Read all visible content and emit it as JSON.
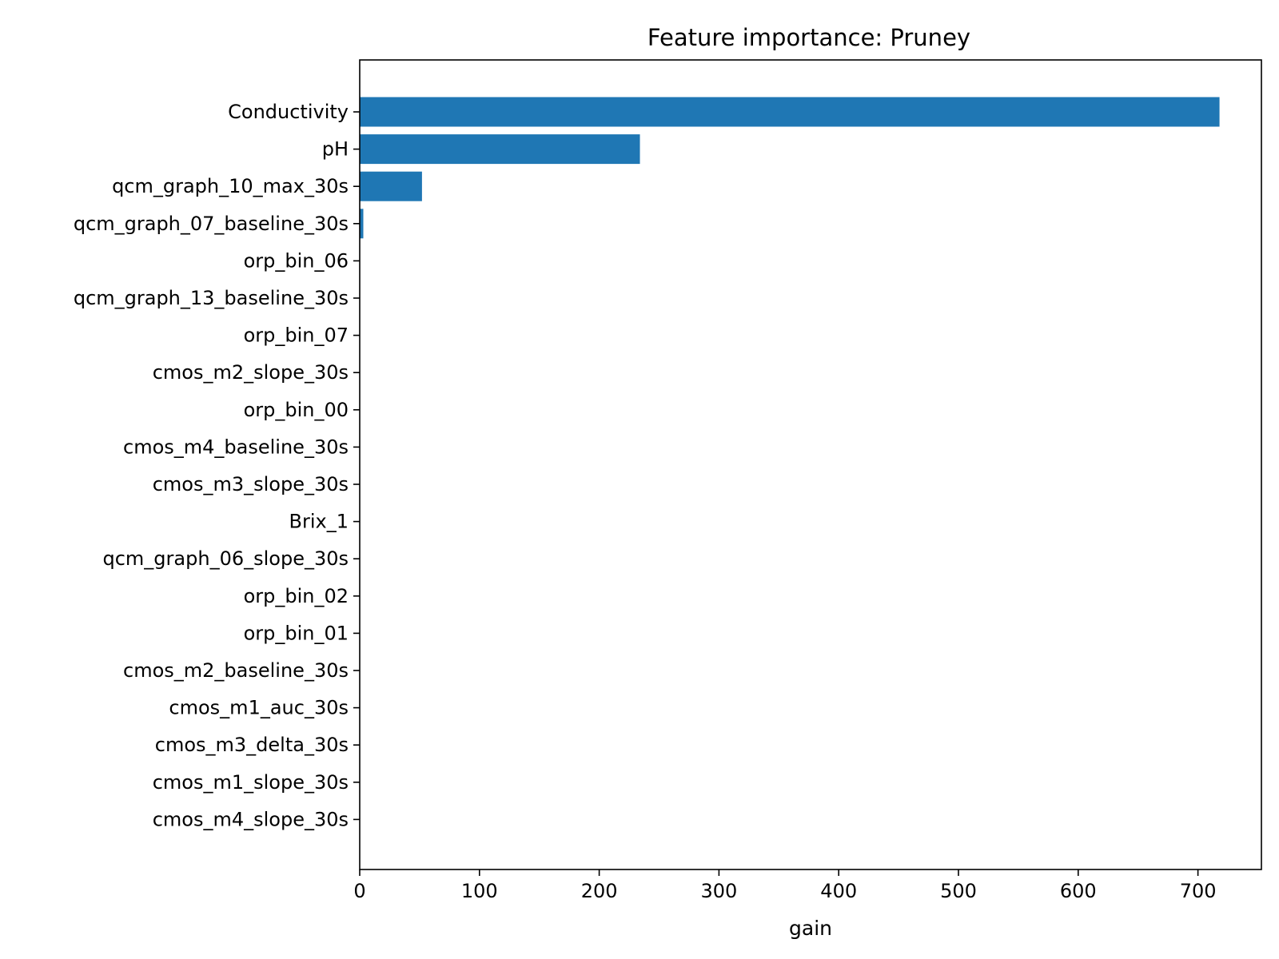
{
  "chart_data": {
    "type": "bar",
    "orientation": "horizontal",
    "title": "Feature importance: Pruney",
    "xlabel": "gain",
    "ylabel": "",
    "xlim": [
      0,
      753
    ],
    "xticks": [
      0,
      100,
      200,
      300,
      400,
      500,
      600,
      700
    ],
    "grid": false,
    "legend": "none",
    "bar_color": "#1f77b4",
    "categories": [
      "Conductivity",
      "pH",
      "qcm_graph_10_max_30s",
      "qcm_graph_07_baseline_30s",
      "orp_bin_06",
      "qcm_graph_13_baseline_30s",
      "orp_bin_07",
      "cmos_m2_slope_30s",
      "orp_bin_00",
      "cmos_m4_baseline_30s",
      "cmos_m3_slope_30s",
      "Brix_1",
      "qcm_graph_06_slope_30s",
      "orp_bin_02",
      "orp_bin_01",
      "cmos_m2_baseline_30s",
      "cmos_m1_auc_30s",
      "cmos_m3_delta_30s",
      "cmos_m1_slope_30s",
      "cmos_m4_slope_30s"
    ],
    "values": [
      718,
      234,
      52,
      3,
      0,
      0,
      0,
      0,
      0,
      0,
      0,
      0,
      0,
      0,
      0,
      0,
      0,
      0,
      0,
      0
    ]
  }
}
